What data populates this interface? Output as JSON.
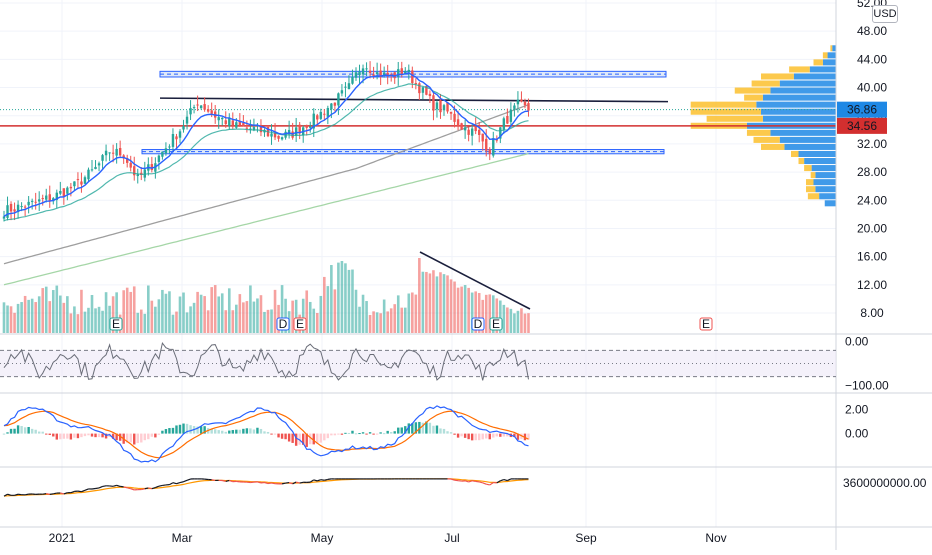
{
  "currency_label": "USD",
  "price_axis": {
    "ticks": [
      "52.00",
      "48.00",
      "44.00",
      "40.00",
      "36.00",
      "32.00",
      "28.00",
      "24.00",
      "20.00",
      "16.00",
      "12.00",
      "8.00"
    ],
    "last_price": "36.86",
    "level_price": "34.56"
  },
  "oscillator_axis": {
    "ticks": [
      "0.00",
      "−100.00"
    ]
  },
  "macd_axis": {
    "ticks": [
      "2.00",
      "0.00"
    ]
  },
  "obv_axis": {
    "ticks": [
      "3600000000.00"
    ]
  },
  "time_axis": {
    "labels": [
      "2021",
      "Mar",
      "May",
      "Jul",
      "Sep",
      "Nov"
    ]
  },
  "event_markers": [
    "E",
    "D",
    "E",
    "D",
    "E",
    "E"
  ],
  "colors": {
    "up": "#26a69a",
    "down": "#ef5350",
    "ema_fast": "#2962ff",
    "sma_mid": "#9e9e9e",
    "sma_long": "#a5d6a7",
    "support": "#d32f2f",
    "trendline": "#1a1f3c",
    "profile_up": "#1e88e5",
    "profile_down": "#fbc02d",
    "zone_fill": "#c5d7f2",
    "zone_border": "#2962ff"
  },
  "chart_data": [
    {
      "type": "candlestick",
      "panel": "price",
      "ylim": [
        6,
        54
      ],
      "annotations": {
        "support_line": 34.56,
        "last_price": 36.86,
        "resistance_zone": [
          41.5,
          42.3
        ],
        "support_zone": [
          30.6,
          31.2
        ],
        "descending_trendline": [
          38.5,
          38.0
        ]
      },
      "volume_profile": [
        {
          "price": 45.5,
          "up": 4,
          "down": 2
        },
        {
          "price": 44.5,
          "up": 9,
          "down": 5
        },
        {
          "price": 43.5,
          "up": 14,
          "down": 10
        },
        {
          "price": 42.5,
          "up": 28,
          "down": 22
        },
        {
          "price": 41.5,
          "up": 45,
          "down": 35
        },
        {
          "price": 40.5,
          "up": 60,
          "down": 30
        },
        {
          "price": 39.5,
          "up": 70,
          "down": 38
        },
        {
          "price": 38.5,
          "up": 78,
          "down": 20
        },
        {
          "price": 37.5,
          "up": 85,
          "down": 70
        },
        {
          "price": 36.5,
          "up": 80,
          "down": 75
        },
        {
          "price": 35.5,
          "up": 78,
          "down": 60
        },
        {
          "price": 34.5,
          "up": 95,
          "down": 60
        },
        {
          "price": 33.5,
          "up": 70,
          "down": 25
        },
        {
          "price": 32.5,
          "up": 60,
          "down": 28
        },
        {
          "price": 31.5,
          "up": 55,
          "down": 25
        },
        {
          "price": 30.5,
          "up": 40,
          "down": 8
        },
        {
          "price": 29.5,
          "up": 34,
          "down": 6
        },
        {
          "price": 28.5,
          "up": 26,
          "down": 8
        },
        {
          "price": 27.5,
          "up": 22,
          "down": 5
        },
        {
          "price": 26.5,
          "up": 24,
          "down": 8
        },
        {
          "price": 25.5,
          "up": 22,
          "down": 10
        },
        {
          "price": 24.5,
          "up": 18,
          "down": 12
        },
        {
          "price": 23.5,
          "up": 12,
          "down": 0
        }
      ]
    },
    {
      "type": "bar",
      "panel": "volume"
    },
    {
      "type": "line",
      "panel": "oscillator",
      "ylim": [
        -115,
        15
      ],
      "levels": [
        -20,
        -50,
        -80
      ]
    },
    {
      "type": "line",
      "panel": "macd",
      "ylim": [
        -2.7,
        3.3
      ]
    },
    {
      "type": "line",
      "panel": "obv"
    }
  ]
}
